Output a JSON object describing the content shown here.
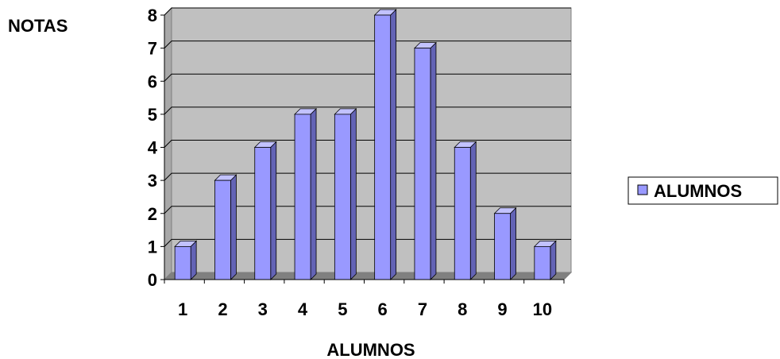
{
  "chart_data": {
    "type": "bar",
    "categories": [
      "1",
      "2",
      "3",
      "4",
      "5",
      "6",
      "7",
      "8",
      "9",
      "10"
    ],
    "series": [
      {
        "name": "ALUMNOS",
        "values": [
          1,
          3,
          4,
          5,
          5,
          8,
          7,
          4,
          2,
          1
        ]
      }
    ],
    "xlabel": "ALUMNOS",
    "ylabel": "NOTAS",
    "ylim": [
      0,
      8
    ],
    "yticks": [
      "0",
      "1",
      "2",
      "3",
      "4",
      "5",
      "6",
      "7",
      "8"
    ],
    "grid": true,
    "legend_position": "right",
    "colors": {
      "bar_front": "#9999ff",
      "bar_side": "#6363b5",
      "bar_top": "#c2c2ff",
      "bar_edge": "#000000",
      "plot_background": "#c0c0c0",
      "floor": "#808080",
      "gridline": "#000000"
    }
  }
}
